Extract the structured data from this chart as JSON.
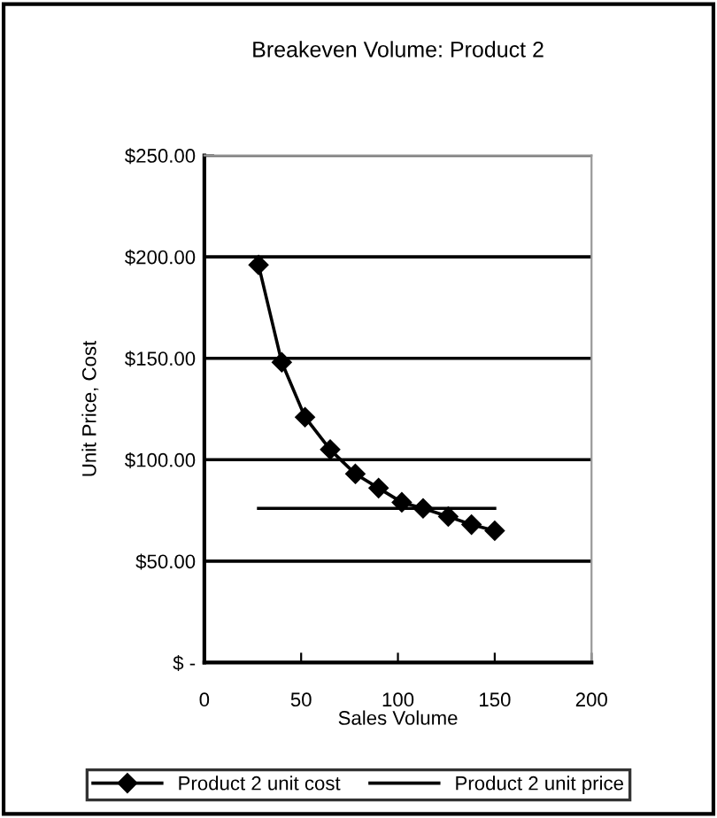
{
  "chart_data": {
    "type": "line",
    "title": "Breakeven Volume: Product 2",
    "xlabel": "Sales Volume",
    "ylabel": "Unit Price, Cost",
    "series": [
      {
        "name": "Product 2 unit cost",
        "color": "#000000",
        "marker": "diamond",
        "x": [
          28,
          40,
          52,
          65,
          78,
          90,
          102,
          113,
          126,
          138,
          150
        ],
        "values": [
          196,
          148,
          121,
          105,
          93,
          86,
          79,
          76,
          72,
          68,
          65
        ]
      },
      {
        "name": "Product 2 unit price",
        "color": "#000000",
        "marker": "none",
        "x": [
          28,
          150
        ],
        "values": [
          76,
          76
        ]
      }
    ],
    "xlim": [
      0,
      200
    ],
    "xticks": [
      0,
      50,
      100,
      150,
      200
    ],
    "ylim": [
      0,
      250
    ],
    "yticks": [
      {
        "value": 0,
        "label": "$ -"
      },
      {
        "value": 50,
        "label": "$50.00"
      },
      {
        "value": 100,
        "label": "$100.00"
      },
      {
        "value": 150,
        "label": "$150.00"
      },
      {
        "value": 200,
        "label": "$200.00"
      },
      {
        "value": 250,
        "label": "$250.00"
      }
    ],
    "grid": "y",
    "legend": "bottom"
  }
}
